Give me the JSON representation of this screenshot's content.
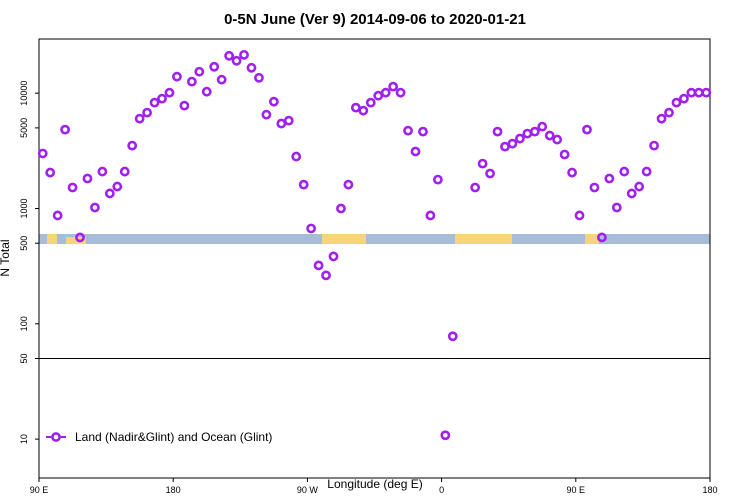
{
  "chart_data": {
    "type": "scatter",
    "title": "0-5N June (Ver 9)   2014-09-06 to 2020-01-21",
    "x_label": "Longitude (deg E)",
    "y_label": "N Total",
    "log_y": true,
    "xlim": [
      90,
      540
    ],
    "ylim": [
      4.6,
      29500
    ],
    "xticks": [
      {
        "value": 90,
        "label": "90 E"
      },
      180,
      {
        "value": 270,
        "label": "90 W"
      },
      {
        "value": 360,
        "label": "0"
      },
      {
        "value": 450,
        "label": "90 E"
      },
      {
        "value": 540,
        "label": "180"
      }
    ],
    "yticks": [
      10,
      50,
      100,
      500,
      1000,
      5000,
      10000
    ],
    "hline": 50,
    "legend": "bottom-left",
    "x": [
      92.5,
      97.5,
      102.5,
      107.5,
      112.5,
      117.5,
      122.5,
      127.5,
      132.5,
      137.5,
      142.5,
      147.5,
      152.5,
      157.5,
      162.5,
      167.5,
      172.5,
      177.5,
      182.5,
      187.5,
      192.5,
      197.5,
      202.5,
      207.5,
      212.5,
      217.5,
      222.5,
      227.5,
      232.5,
      237.5,
      242.5,
      247.5,
      252.5,
      257.5,
      262.5,
      267.5,
      272.5,
      277.5,
      282.5,
      287.5,
      292.5,
      297.5,
      302.5,
      307.5,
      312.5,
      317.5,
      322.5,
      327.5,
      332.5,
      337.5,
      342.5,
      347.5,
      352.5,
      357.5,
      362.5,
      367.5,
      382.5,
      387.5,
      392.5,
      397.5,
      402.5,
      407.5,
      412.5,
      417.5,
      422.5,
      427.5,
      432.5,
      437.5,
      442.5,
      447.5,
      452.5,
      457.5,
      462.5,
      467.5,
      472.5,
      477.5,
      482.5,
      487.5,
      492.5,
      497.5,
      502.5,
      507.5,
      512.5,
      517.5,
      522.5,
      527.5,
      532.5,
      537.5
    ],
    "series": [
      {
        "name": "Land (Nadir&Glint) and Ocean (Glint)",
        "color": "#a020f0",
        "values": [
          3000,
          2050,
          870,
          4830,
          1520,
          561,
          1820,
          1020,
          2090,
          1350,
          1550,
          2090,
          3510,
          6010,
          6780,
          8280,
          8960,
          10100,
          13900,
          7800,
          12600,
          15350,
          10300,
          16950,
          13100,
          21100,
          19100,
          21500,
          16600,
          13600,
          6510,
          8440,
          5450,
          5780,
          2820,
          1610,
          671,
          321,
          263,
          384,
          1000,
          1610,
          7490,
          7050,
          8280,
          9510,
          10100,
          11400,
          10100,
          4730,
          3120,
          4640,
          870,
          1780,
          10.8,
          78,
          1520,
          2450,
          2010,
          4640,
          3440,
          3650,
          4040,
          4460,
          4640,
          5130,
          4290,
          3960,
          2940,
          2050,
          870,
          4830,
          1520,
          561,
          1820,
          1020,
          2090,
          1350,
          1550,
          2090,
          3510,
          6010,
          6780,
          8280,
          8960,
          10100,
          10100,
          10100
        ]
      }
    ]
  }
}
